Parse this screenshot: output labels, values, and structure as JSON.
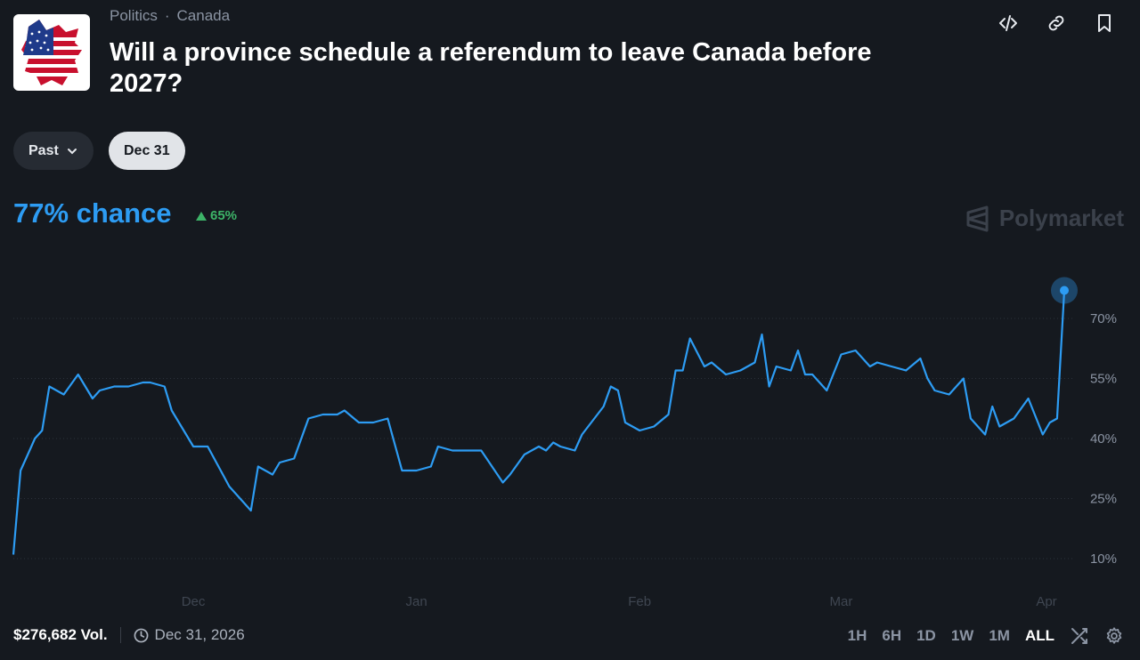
{
  "breadcrumb": [
    "Politics",
    "Canada"
  ],
  "title": "Will a province schedule a referendum to leave Canada before 2027?",
  "filters": {
    "past_label": "Past",
    "date_label": "Dec 31"
  },
  "chance": {
    "text": "77% chance",
    "delta": "65%",
    "delta_direction": "up"
  },
  "brand": "Polymarket",
  "colors": {
    "accent": "#2d9cf3",
    "up": "#3db468",
    "background": "#15191f"
  },
  "footer": {
    "volume": "$276,682 Vol.",
    "end_date": "Dec 31, 2026"
  },
  "ranges": [
    {
      "label": "1H",
      "active": false
    },
    {
      "label": "6H",
      "active": false
    },
    {
      "label": "1D",
      "active": false
    },
    {
      "label": "1W",
      "active": false
    },
    {
      "label": "1M",
      "active": false
    },
    {
      "label": "ALL",
      "active": true
    }
  ],
  "chart_data": {
    "type": "line",
    "series": [
      {
        "x": [
          "2025-11-06",
          "2025-11-07",
          "2025-11-08",
          "2025-11-09",
          "2025-11-10",
          "2025-11-11",
          "2025-11-12",
          "2025-11-13",
          "2025-11-15",
          "2025-11-17",
          "2025-11-18",
          "2025-11-20",
          "2025-11-22",
          "2025-11-24",
          "2025-11-25",
          "2025-11-27",
          "2025-11-28",
          "2025-12-01",
          "2025-12-03",
          "2025-12-06",
          "2025-12-09",
          "2025-12-10",
          "2025-12-12",
          "2025-12-13",
          "2025-12-15",
          "2025-12-16",
          "2025-12-17",
          "2025-12-19",
          "2025-12-21",
          "2025-12-22",
          "2025-12-24",
          "2025-12-26",
          "2025-12-28",
          "2025-12-30",
          "2026-01-01",
          "2026-01-03",
          "2026-01-04",
          "2026-01-06",
          "2026-01-08",
          "2026-01-10",
          "2026-01-13",
          "2026-01-14",
          "2026-01-16",
          "2026-01-18",
          "2026-01-19",
          "2026-01-20",
          "2026-01-21",
          "2026-01-23",
          "2026-01-24",
          "2026-01-27",
          "2026-01-28",
          "2026-01-29",
          "2026-01-30",
          "2026-02-01",
          "2026-02-03",
          "2026-02-05",
          "2026-02-06",
          "2026-02-07",
          "2026-02-08",
          "2026-02-10",
          "2026-02-11",
          "2026-02-13",
          "2026-02-15",
          "2026-02-17",
          "2026-02-18",
          "2026-02-19",
          "2026-02-20",
          "2026-02-22",
          "2026-02-23",
          "2026-02-24",
          "2026-02-25",
          "2026-02-27",
          "2026-03-01",
          "2026-03-03",
          "2026-03-05",
          "2026-03-06",
          "2026-03-08",
          "2026-03-10",
          "2026-03-12",
          "2026-03-13",
          "2026-03-14",
          "2026-03-16",
          "2026-03-18",
          "2026-03-19",
          "2026-03-21",
          "2026-03-22",
          "2026-03-23",
          "2026-03-25",
          "2026-03-27",
          "2026-03-29",
          "2026-03-30",
          "2026-03-31",
          "2026-04-01"
        ],
        "values": [
          11,
          32,
          36,
          40,
          42,
          53,
          52,
          51,
          56,
          50,
          52,
          53,
          53,
          54,
          54,
          53,
          47,
          38,
          38,
          28,
          22,
          33,
          31,
          34,
          35,
          40,
          45,
          46,
          46,
          47,
          44,
          44,
          45,
          32,
          32,
          33,
          38,
          37,
          37,
          37,
          29,
          31,
          36,
          38,
          37,
          39,
          38,
          37,
          41,
          48,
          53,
          52,
          44,
          42,
          43,
          46,
          57,
          57,
          65,
          58,
          59,
          56,
          57,
          59,
          66,
          53,
          58,
          57,
          62,
          56,
          56,
          52,
          61,
          62,
          58,
          59,
          58,
          57,
          60,
          55,
          52,
          51,
          55,
          45,
          41,
          48,
          43,
          45,
          50,
          41,
          44,
          45,
          77
        ]
      }
    ],
    "y_ticks": [
      "70%",
      "55%",
      "40%",
      "25%",
      "10%"
    ],
    "x_ticks": [
      "Dec",
      "Jan",
      "Feb",
      "Mar",
      "Apr"
    ],
    "ylim": [
      10,
      80
    ],
    "grid": true
  }
}
